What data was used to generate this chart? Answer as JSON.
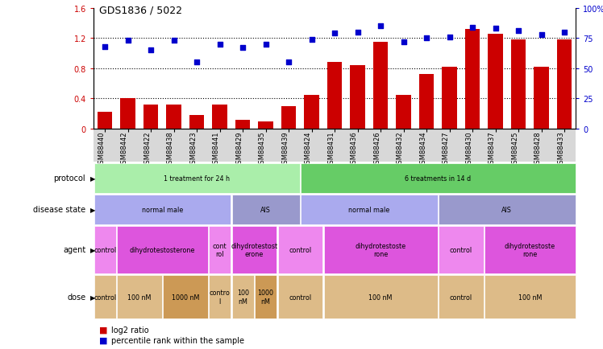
{
  "title": "GDS1836 / 5022",
  "samples": [
    "GSM88440",
    "GSM88442",
    "GSM88422",
    "GSM88438",
    "GSM88423",
    "GSM88441",
    "GSM88429",
    "GSM88435",
    "GSM88439",
    "GSM88424",
    "GSM88431",
    "GSM88436",
    "GSM88426",
    "GSM88432",
    "GSM88434",
    "GSM88427",
    "GSM88430",
    "GSM88437",
    "GSM88425",
    "GSM88428",
    "GSM88433"
  ],
  "log2_ratio": [
    0.22,
    0.4,
    0.32,
    0.32,
    0.18,
    0.32,
    0.12,
    0.1,
    0.3,
    0.45,
    0.88,
    0.84,
    1.15,
    0.45,
    0.72,
    0.82,
    1.32,
    1.26,
    1.18,
    0.82,
    1.18
  ],
  "percentile": [
    68,
    73,
    65,
    73,
    55,
    70,
    67,
    70,
    55,
    74,
    79,
    80,
    85,
    72,
    75,
    76,
    84,
    83,
    81,
    78,
    80
  ],
  "bar_color": "#cc0000",
  "dot_color": "#0000cc",
  "ylim_left": [
    0,
    1.6
  ],
  "ylim_right": [
    0,
    100
  ],
  "yticks_left": [
    0.0,
    0.4,
    0.8,
    1.2,
    1.6
  ],
  "yticks_right": [
    0,
    25,
    50,
    75,
    100
  ],
  "ytick_labels_left": [
    "0",
    "0.4",
    "0.8",
    "1.2",
    "1.6"
  ],
  "ytick_labels_right": [
    "0",
    "25",
    "50",
    "75",
    "100%"
  ],
  "hlines": [
    0.4,
    0.8,
    1.2
  ],
  "protocol_groups": [
    {
      "label": "1 treatment for 24 h",
      "start": 0,
      "end": 9,
      "color": "#aaeeaa"
    },
    {
      "label": "6 treatments in 14 d",
      "start": 9,
      "end": 21,
      "color": "#66cc66"
    }
  ],
  "disease_groups": [
    {
      "label": "normal male",
      "start": 0,
      "end": 6,
      "color": "#aaaaee"
    },
    {
      "label": "AIS",
      "start": 6,
      "end": 9,
      "color": "#9999cc"
    },
    {
      "label": "normal male",
      "start": 9,
      "end": 15,
      "color": "#aaaaee"
    },
    {
      "label": "AIS",
      "start": 15,
      "end": 21,
      "color": "#9999cc"
    }
  ],
  "agent_groups": [
    {
      "label": "control",
      "start": 0,
      "end": 1,
      "color": "#ee88ee"
    },
    {
      "label": "dihydrotestosterone",
      "start": 1,
      "end": 5,
      "color": "#dd55dd"
    },
    {
      "label": "cont\nrol",
      "start": 5,
      "end": 6,
      "color": "#ee88ee"
    },
    {
      "label": "dihydrotestost\nerone",
      "start": 6,
      "end": 8,
      "color": "#dd55dd"
    },
    {
      "label": "control",
      "start": 8,
      "end": 10,
      "color": "#ee88ee"
    },
    {
      "label": "dihydrotestoste\nrone",
      "start": 10,
      "end": 15,
      "color": "#dd55dd"
    },
    {
      "label": "control",
      "start": 15,
      "end": 17,
      "color": "#ee88ee"
    },
    {
      "label": "dihydrotestoste\nrone",
      "start": 17,
      "end": 21,
      "color": "#dd55dd"
    }
  ],
  "dose_groups": [
    {
      "label": "control",
      "start": 0,
      "end": 1,
      "color": "#ddbb88"
    },
    {
      "label": "100 nM",
      "start": 1,
      "end": 3,
      "color": "#ddbb88"
    },
    {
      "label": "1000 nM",
      "start": 3,
      "end": 5,
      "color": "#cc9955"
    },
    {
      "label": "contro\nl",
      "start": 5,
      "end": 6,
      "color": "#ddbb88"
    },
    {
      "label": "100\nnM",
      "start": 6,
      "end": 7,
      "color": "#ddbb88"
    },
    {
      "label": "1000\nnM",
      "start": 7,
      "end": 8,
      "color": "#cc9955"
    },
    {
      "label": "control",
      "start": 8,
      "end": 10,
      "color": "#ddbb88"
    },
    {
      "label": "100 nM",
      "start": 10,
      "end": 15,
      "color": "#ddbb88"
    },
    {
      "label": "control",
      "start": 15,
      "end": 17,
      "color": "#ddbb88"
    },
    {
      "label": "100 nM",
      "start": 17,
      "end": 21,
      "color": "#ddbb88"
    }
  ],
  "legend_items": [
    {
      "color": "#cc0000",
      "label": "log2 ratio"
    },
    {
      "color": "#0000cc",
      "label": "percentile rank within the sample"
    }
  ],
  "fig_width": 7.48,
  "fig_height": 4.35,
  "dpi": 100
}
